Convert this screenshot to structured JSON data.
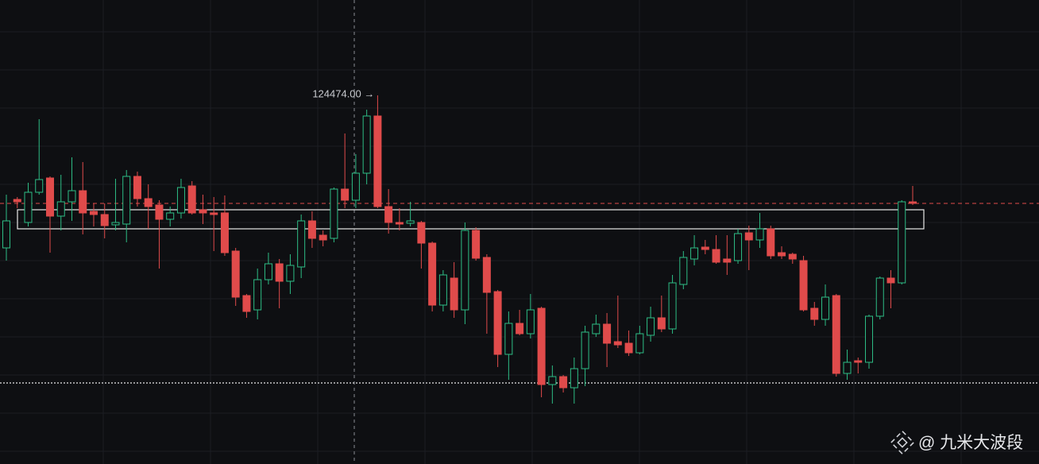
{
  "chart_data": {
    "type": "candlestick",
    "ylim": [
      101274,
      130474
    ],
    "up_color": "#2dbd85",
    "down_color": "#e04b4b",
    "open": [
      114874,
      117924,
      116474,
      118374,
      119274,
      116874,
      117774,
      118474,
      117174,
      116974,
      116324,
      116374,
      119374,
      117974,
      117574,
      116674,
      117074,
      118774,
      117274,
      117074,
      117074,
      114674,
      111874,
      110974,
      112874,
      113874,
      112774,
      113674,
      116574,
      115674,
      115474,
      118574,
      117874,
      119574,
      123174,
      117474,
      116474,
      116424,
      116474,
      115174,
      111274,
      112974,
      110974,
      115974,
      114274,
      112124,
      108174,
      110124,
      109474,
      111074,
      106274,
      106774,
      106074,
      107274,
      109474,
      110074,
      108974,
      108874,
      108274,
      109374,
      110474,
      109774,
      112574,
      114174,
      114924,
      114774,
      114174,
      114074,
      115824,
      115374,
      116074,
      114574,
      114474,
      114074,
      111074,
      110374,
      111874,
      106974,
      107774,
      107674,
      110574,
      112974,
      112674,
      117774
    ],
    "high": [
      118224,
      118074,
      118974,
      122974,
      119374,
      119474,
      120574,
      120274,
      117674,
      117674,
      119224,
      119774,
      119674,
      118874,
      117874,
      117474,
      119224,
      119074,
      118224,
      118074,
      118174,
      114874,
      111974,
      113574,
      114574,
      114174,
      114474,
      116974,
      117174,
      115974,
      118674,
      122074,
      120774,
      123574,
      124474,
      118574,
      117374,
      117774,
      116574,
      115274,
      113474,
      113974,
      116474,
      116174,
      114474,
      112224,
      110874,
      110974,
      111974,
      111174,
      107474,
      106874,
      107974,
      109974,
      110674,
      110774,
      111874,
      109674,
      109974,
      111174,
      111874,
      113174,
      114674,
      115674,
      115374,
      115674,
      115674,
      116074,
      116274,
      117074,
      116274,
      114974,
      114574,
      114374,
      111474,
      112574,
      111974,
      108474,
      107974,
      110674,
      113074,
      113474,
      117874,
      118774
    ],
    "low": [
      114074,
      117374,
      116224,
      118224,
      114574,
      115974,
      116574,
      115724,
      116224,
      115474,
      115974,
      115224,
      117474,
      116074,
      113574,
      116224,
      116724,
      116974,
      116374,
      114674,
      114374,
      111224,
      110474,
      110374,
      112574,
      111074,
      111974,
      112974,
      114874,
      114974,
      115224,
      117374,
      117374,
      118874,
      117374,
      115774,
      115974,
      116224,
      113574,
      110874,
      110874,
      110474,
      110074,
      114074,
      109474,
      107374,
      106574,
      109374,
      109174,
      105474,
      105074,
      105774,
      105074,
      106174,
      109274,
      107374,
      108574,
      108074,
      108174,
      108974,
      109574,
      109474,
      112274,
      113774,
      114474,
      113874,
      113174,
      113874,
      113474,
      114874,
      114174,
      114174,
      113874,
      110874,
      109974,
      109974,
      106774,
      106574,
      106974,
      107274,
      110374,
      111074,
      112574,
      117574
    ],
    "close": [
      116574,
      117774,
      118374,
      119174,
      116874,
      117774,
      118474,
      117074,
      116974,
      116274,
      116474,
      119374,
      117974,
      117474,
      116674,
      117074,
      118674,
      117074,
      117074,
      116974,
      114574,
      111774,
      110874,
      112874,
      113874,
      112774,
      113774,
      116574,
      115474,
      115374,
      118574,
      117874,
      119574,
      123174,
      117474,
      116474,
      116374,
      116574,
      115174,
      111274,
      113174,
      110974,
      115974,
      114224,
      112074,
      108174,
      110124,
      109474,
      110974,
      106274,
      106774,
      106074,
      107274,
      109574,
      110074,
      108874,
      108774,
      108274,
      109474,
      110474,
      109774,
      112674,
      114274,
      114874,
      114774,
      113974,
      113974,
      115774,
      115374,
      116074,
      114374,
      114374,
      114174,
      110974,
      110374,
      111774,
      106974,
      107674,
      107674,
      110574,
      112974,
      112674,
      117774,
      117674
    ],
    "annotation": {
      "value": 124474,
      "label": "124474.00 →"
    },
    "zone": [
      116074,
      117274
    ],
    "price_line": 117674,
    "low_line": 106374,
    "watermark": "@ 九米大波段"
  }
}
